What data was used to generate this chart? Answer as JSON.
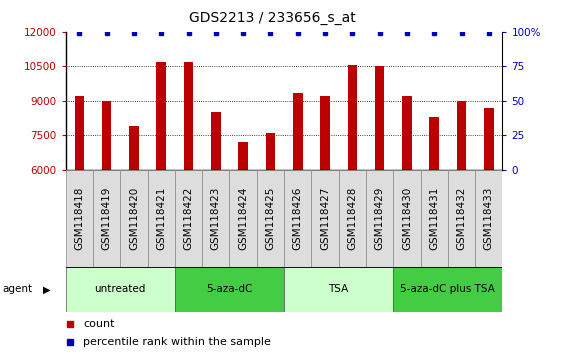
{
  "title": "GDS2213 / 233656_s_at",
  "samples": [
    "GSM118418",
    "GSM118419",
    "GSM118420",
    "GSM118421",
    "GSM118422",
    "GSM118423",
    "GSM118424",
    "GSM118425",
    "GSM118426",
    "GSM118427",
    "GSM118428",
    "GSM118429",
    "GSM118430",
    "GSM118431",
    "GSM118432",
    "GSM118433"
  ],
  "counts": [
    9200,
    9000,
    7900,
    10700,
    10700,
    8500,
    7200,
    7600,
    9350,
    9200,
    10550,
    10500,
    9200,
    8300,
    9000,
    8700
  ],
  "ylim_left": [
    6000,
    12000
  ],
  "ylim_right": [
    0,
    100
  ],
  "yticks_left": [
    6000,
    7500,
    9000,
    10500,
    12000
  ],
  "yticks_right": [
    0,
    25,
    50,
    75,
    100
  ],
  "bar_color": "#bb0000",
  "dot_color": "#0000bb",
  "agent_groups": [
    {
      "label": "untreated",
      "start": 0,
      "end": 3,
      "color": "#ccffcc"
    },
    {
      "label": "5-aza-dC",
      "start": 4,
      "end": 7,
      "color": "#44cc44"
    },
    {
      "label": "TSA",
      "start": 8,
      "end": 11,
      "color": "#ccffcc"
    },
    {
      "label": "5-aza-dC plus TSA",
      "start": 12,
      "end": 15,
      "color": "#44cc44"
    }
  ],
  "grid_dotted_at": [
    7500,
    9000,
    10500
  ],
  "title_fontsize": 10,
  "tick_fontsize": 7.5,
  "legend_fontsize": 8
}
